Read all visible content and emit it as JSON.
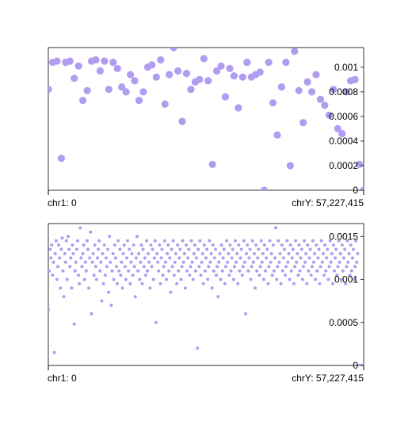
{
  "chart_data": [
    {
      "type": "scatter",
      "title": "",
      "xlabel": "",
      "ylabel": "",
      "x_range_labels": [
        "chr1: 0",
        "chrY: 57,227,415"
      ],
      "ylim": [
        0,
        0.00116
      ],
      "y_ticks": [
        0,
        0.0002,
        0.0004,
        0.0006,
        0.0008,
        0.001
      ],
      "y_tick_labels": [
        "0",
        "0.0002",
        "0.0004",
        "0.0006",
        "0.0008",
        "0.001"
      ],
      "y_axis_position": "right",
      "grid": false,
      "legend": "none",
      "point_color": "#b19cf0",
      "point_size": "large",
      "series": [
        {
          "values": [
            0.00082,
            0.00104,
            0.00105,
            0.00026,
            0.00104,
            0.00105,
            0.00091,
            0.00101,
            0.00073,
            0.00081,
            0.00105,
            0.00106,
            0.00097,
            0.00105,
            0.00082,
            0.00104,
            0.00099,
            0.00084,
            0.0008,
            0.00094,
            0.00089,
            0.00073,
            0.0008,
            0.001,
            0.00102,
            0.00092,
            0.00106,
            0.0007,
            0.00094,
            0.00116,
            0.00097,
            0.00056,
            0.00095,
            0.00082,
            0.00088,
            0.0009,
            0.00107,
            0.00089,
            0.00021,
            0.00097,
            0.00101,
            0.00076,
            0.00099,
            0.00093,
            0.00067,
            0.00092,
            0.00104,
            0.00092,
            0.00094,
            0.00096,
            0.0,
            0.00104,
            0.00071,
            0.00045,
            0.00084,
            0.00104,
            0.0002,
            0.00113,
            0.00081,
            0.00055,
            0.00088,
            0.0008,
            0.00094,
            0.00074,
            0.00069,
            0.00061,
            0.00082,
            0.0005,
            0.00046,
            0.0008,
            0.00089,
            0.0009,
            0.00021,
            0.0
          ]
        }
      ]
    },
    {
      "type": "scatter",
      "title": "",
      "xlabel": "",
      "ylabel": "",
      "x_range_labels": [
        "chr1: 0",
        "chrY: 57,227,415"
      ],
      "ylim": [
        0,
        0.00165
      ],
      "y_ticks": [
        0,
        0.0005,
        0.001,
        0.0015
      ],
      "y_tick_labels": [
        "0",
        "0.0005",
        "0.001",
        "0.0015"
      ],
      "y_axis_position": "right",
      "grid": false,
      "legend": "none",
      "point_color": "#b19cf0",
      "point_size": "small",
      "series": [
        {
          "values": [
            0.00065,
            0.0011,
            0.00135,
            0.00125,
            0.0014,
            0.00105,
            0.0012,
            0.00015,
            0.0013,
            0.00145,
            0.001,
            0.00115,
            0.0014,
            0.00125,
            0.0009,
            0.00135,
            0.00148,
            0.0011,
            0.0008,
            0.0013,
            0.0012,
            0.00145,
            0.001,
            0.0015,
            0.00135,
            0.00115,
            0.00125,
            0.0009,
            0.0014,
            0.0013,
            0.00048,
            0.0011,
            0.0012,
            0.00135,
            0.00145,
            0.00105,
            0.00095,
            0.0016,
            0.00125,
            0.00115,
            0.0013,
            0.0014,
            0.001,
            0.0012,
            0.0011,
            0.00145,
            0.00135,
            0.0009,
            0.00125,
            0.00155,
            0.0006,
            0.0012,
            0.0013,
            0.00105,
            0.0014,
            0.00115,
            0.001,
            0.00125,
            0.00135,
            0.00145,
            0.0011,
            0.0012,
            0.00075,
            0.0013,
            0.00095,
            0.0014,
            0.00105,
            0.00125,
            0.00115,
            0.00135,
            0.00085,
            0.0015,
            0.0012,
            0.0007,
            0.0011,
            0.0013,
            0.001,
            0.0014,
            0.00125,
            0.00115,
            0.00095,
            0.00145,
            0.0011,
            0.00135,
            0.00105,
            0.0012,
            0.0009,
            0.0013,
            0.0014,
            0.00115,
            0.001,
            0.00125,
            0.00145,
            0.0011,
            0.00135,
            0.00095,
            0.0012,
            0.0013,
            0.00105,
            0.0014,
            0.00115,
            0.0008,
            0.00125,
            0.0015,
            0.0011,
            0.0013,
            0.001,
            0.0012,
            0.0014,
            0.00095,
            0.00135,
            0.00115,
            0.00125,
            0.00105,
            0.00145,
            0.0011,
            0.0013,
            0.0012,
            0.0009,
            0.0014,
            0.00115,
            0.00135,
            0.001,
            0.00125,
            0.00145,
            0.0005,
            0.0013,
            0.0012,
            0.0011,
            0.0014,
            0.00095,
            0.00125,
            0.00135,
            0.00105,
            0.00115,
            0.00145,
            0.0012,
            0.001,
            0.0013,
            0.0014,
            0.0011,
            0.00125,
            0.00085,
            0.00135,
            0.00115,
            0.00145,
            0.00105,
            0.0012,
            0.0013,
            0.00095,
            0.0014,
            0.0011,
            0.00125,
            0.00135,
            0.001,
            0.00115,
            0.00145,
            0.0012,
            0.0013,
            0.0009,
            0.0014,
            0.0011,
            0.00125,
            0.00135,
            0.00105,
            0.00115,
            0.00145,
            0.0012,
            0.001,
            0.0013,
            0.0014,
            0.0011,
            0.00125,
            0.0002,
            0.00135,
            0.00115,
            0.00145,
            0.00105,
            0.0012,
            0.0013,
            0.00095,
            0.0014,
            0.0011,
            0.00125,
            0.00135,
            0.001,
            0.00115,
            0.00145,
            0.0012,
            0.0013,
            0.0009,
            0.0014,
            0.0011,
            0.00125,
            0.00135,
            0.00105,
            0.00115,
            0.0008,
            0.0012,
            0.0013,
            0.001,
            0.0014,
            0.0011,
            0.00125,
            0.00135,
            0.00095,
            0.00115,
            0.00145,
            0.0012,
            0.0013,
            0.00105,
            0.0014,
            0.0011,
            0.00125,
            0.00135,
            0.001,
            0.00115,
            0.00145,
            0.0012,
            0.0013,
            0.00095,
            0.0014,
            0.0011,
            0.00125,
            0.00135,
            0.00105,
            0.00115,
            0.00145,
            0.0012,
            0.0006,
            0.0013,
            0.0014,
            0.0011,
            0.00125,
            0.00135,
            0.001,
            0.00115,
            0.00145,
            0.0012,
            0.0013,
            0.0009,
            0.0014,
            0.0011,
            0.00125,
            0.00135,
            0.00105,
            0.00115,
            0.00145,
            0.0012,
            0.0013,
            0.001,
            0.0014,
            0.0011,
            0.00125,
            0.00135,
            0.00095,
            0.00115,
            0.00145,
            0.0012,
            0.0013,
            0.00105,
            0.0014,
            0.0011,
            0.00125,
            0.0016,
            0.001,
            0.00115,
            0.00145,
            0.0012,
            0.0013,
            0.00095,
            0.0014,
            0.0011,
            0.00125,
            0.00135,
            0.00105,
            0.00115,
            0.00145,
            0.0012,
            0.0013,
            0.001,
            0.0014,
            0.0011,
            0.00125,
            0.00135,
            0.00095,
            0.00115,
            0.00145,
            0.0012,
            0.0013,
            0.00105,
            0.0014,
            0.0011,
            0.00125,
            0.00135,
            0.001,
            0.00115,
            0.00145,
            0.0012,
            0.0013,
            0.00095,
            0.0014,
            0.0011,
            0.00125,
            0.00135,
            0.00105,
            0.00115,
            0.00145,
            0.0012,
            0.0013,
            0.001,
            0.0014,
            0.0011,
            0.00125,
            0.00135,
            0.00095,
            0.00115,
            0.00145,
            0.0012,
            0.0013,
            0.00105,
            0.0014,
            0.0011,
            0.00125,
            0.00135,
            0.001,
            0.00115,
            0.00145,
            0.0012,
            0.0013,
            0.00095,
            0.0014,
            0.0011,
            0.00125,
            0.00135,
            0.00105,
            0.00115,
            0.00145,
            0.0012,
            0.0013,
            0.001,
            0.0014,
            0.0011,
            0.00125,
            0.00135,
            0.00095,
            0.00115,
            0.00145,
            0.0012,
            0.0013,
            0.00105,
            0.0014,
            0.0011,
            0.00125,
            0.00135,
            0.001,
            0.00115,
            0.00145,
            0.0012,
            0.0013,
            0.0,
            0.0,
            0.0,
            0.0,
            0.0,
            0.0,
            0.0
          ]
        }
      ]
    }
  ]
}
